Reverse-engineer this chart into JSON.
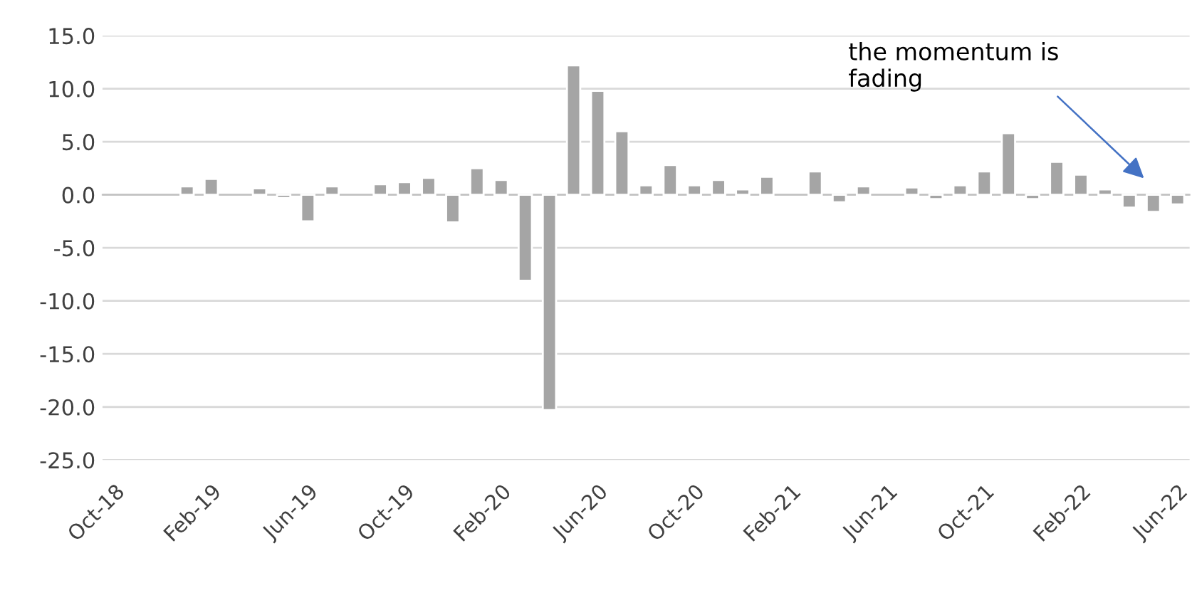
{
  "chart_data": {
    "type": "bar",
    "categories": [
      "Oct-18",
      null,
      null,
      null,
      "Feb-19",
      null,
      null,
      null,
      "Jun-19",
      null,
      null,
      null,
      "Oct-19",
      null,
      null,
      null,
      "Feb-20",
      null,
      null,
      null,
      "Jun-20",
      null,
      null,
      null,
      "Oct-20",
      null,
      null,
      null,
      "Feb-21",
      null,
      null,
      null,
      "Jun-21",
      null,
      null,
      null,
      "Oct-21",
      null,
      null,
      null,
      "Feb-22",
      null,
      null,
      null,
      "Jun-22"
    ],
    "values": [
      null,
      null,
      null,
      0.8,
      1.5,
      null,
      0.6,
      -0.3,
      -2.5,
      0.8,
      null,
      1.0,
      1.2,
      1.6,
      -2.6,
      2.5,
      1.4,
      -8.1,
      -20.3,
      12.2,
      9.8,
      6.0,
      0.9,
      2.8,
      0.9,
      1.4,
      0.5,
      1.7,
      null,
      2.2,
      -0.7,
      0.8,
      null,
      0.7,
      -0.4,
      0.9,
      2.2,
      5.8,
      -0.4,
      3.1,
      1.9,
      0.5,
      -1.2,
      -1.6,
      -0.9
    ],
    "color": "#a5a5a5",
    "ylim": [
      -25,
      15
    ],
    "yticks": [
      {
        "value": -25,
        "label": "-25.0"
      },
      {
        "value": -20,
        "label": "-20.0"
      },
      {
        "value": -15,
        "label": "-15.0"
      },
      {
        "value": -10,
        "label": "-10.0"
      },
      {
        "value": -5,
        "label": "-5.0"
      },
      {
        "value": 0,
        "label": "0.0"
      },
      {
        "value": 5,
        "label": "5.0"
      },
      {
        "value": 10,
        "label": "10.0"
      },
      {
        "value": 15,
        "label": "15.0"
      }
    ],
    "grid": "y",
    "annotations": [
      "the momentum is\nfading"
    ]
  }
}
